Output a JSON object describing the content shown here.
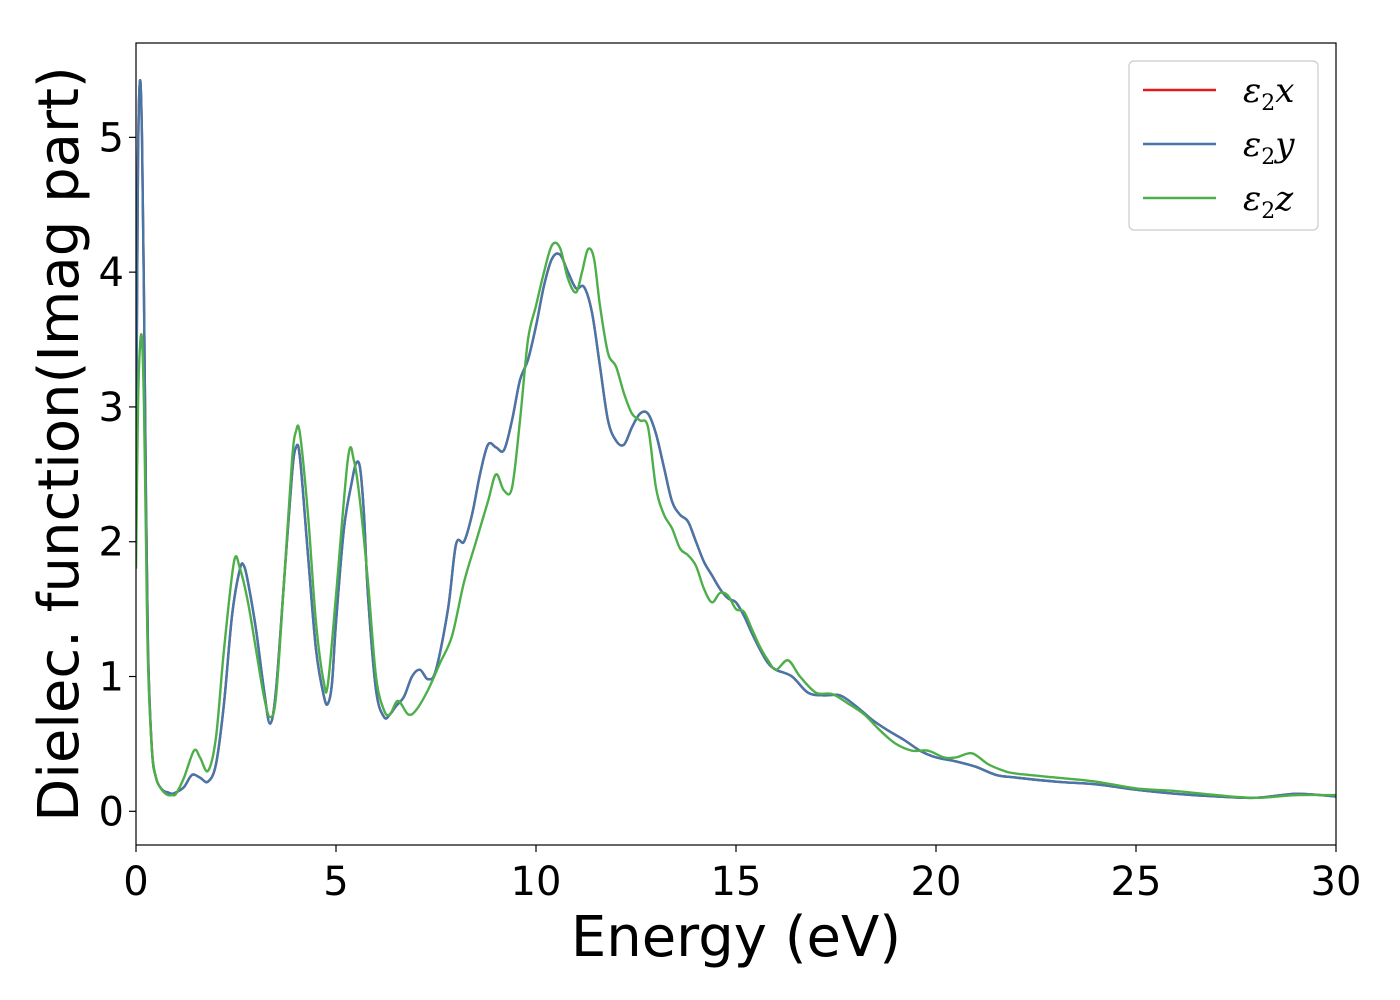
{
  "chart_data": {
    "type": "line",
    "xlabel": "Energy (eV)",
    "ylabel": "Dielec. function(Imag part)",
    "xlim": [
      0,
      30
    ],
    "ylim": [
      -0.25,
      5.7
    ],
    "xticks": [
      0,
      5,
      10,
      15,
      20,
      25,
      30
    ],
    "yticks": [
      0,
      1,
      2,
      3,
      4,
      5
    ],
    "grid": false,
    "legend_position": "top-right",
    "series": [
      {
        "name": "ε2x",
        "legend_main": "ε",
        "legend_sub": "2",
        "legend_tail": "x",
        "color": "#e41a1c",
        "x": [
          0,
          0.05,
          0.1,
          0.15,
          0.2,
          0.25,
          0.3,
          0.4,
          0.5,
          0.6,
          0.7,
          0.8,
          0.9,
          1.0,
          1.2,
          1.4,
          1.6,
          1.8,
          2.0,
          2.2,
          2.4,
          2.6,
          2.7,
          2.8,
          3.0,
          3.2,
          3.35,
          3.5,
          3.7,
          3.9,
          4.0,
          4.1,
          4.3,
          4.5,
          4.7,
          4.8,
          4.9,
          5.0,
          5.2,
          5.4,
          5.5,
          5.6,
          5.7,
          5.8,
          6.0,
          6.2,
          6.35,
          6.5,
          6.7,
          6.9,
          7.1,
          7.3,
          7.5,
          7.8,
          8.0,
          8.2,
          8.4,
          8.6,
          8.8,
          9.0,
          9.2,
          9.4,
          9.6,
          9.8,
          10.0,
          10.2,
          10.4,
          10.6,
          10.8,
          11.0,
          11.2,
          11.4,
          11.6,
          11.8,
          12.0,
          12.2,
          12.4,
          12.6,
          12.8,
          13.0,
          13.2,
          13.4,
          13.6,
          13.8,
          14.0,
          14.2,
          14.4,
          14.6,
          14.8,
          15.0,
          15.2,
          15.4,
          15.6,
          15.8,
          16.0,
          16.4,
          16.8,
          17.2,
          17.6,
          18.0,
          18.4,
          18.8,
          19.2,
          19.6,
          20.0,
          20.5,
          21.0,
          21.5,
          22.0,
          23.0,
          24.0,
          25.0,
          26.0,
          27.0,
          28.0,
          29.0,
          30.0
        ],
        "y": [
          2.4,
          4.8,
          5.42,
          5.0,
          3.8,
          2.3,
          1.2,
          0.45,
          0.25,
          0.18,
          0.15,
          0.14,
          0.13,
          0.14,
          0.18,
          0.27,
          0.25,
          0.22,
          0.35,
          0.8,
          1.45,
          1.8,
          1.82,
          1.7,
          1.35,
          0.9,
          0.65,
          0.9,
          1.7,
          2.5,
          2.7,
          2.62,
          1.9,
          1.2,
          0.85,
          0.8,
          0.95,
          1.4,
          2.1,
          2.45,
          2.58,
          2.55,
          2.2,
          1.6,
          0.9,
          0.7,
          0.72,
          0.78,
          0.85,
          1.0,
          1.05,
          0.98,
          1.05,
          1.5,
          1.98,
          2.0,
          2.2,
          2.5,
          2.72,
          2.7,
          2.68,
          2.9,
          3.2,
          3.35,
          3.6,
          3.9,
          4.1,
          4.13,
          4.0,
          3.88,
          3.89,
          3.7,
          3.3,
          2.9,
          2.75,
          2.72,
          2.85,
          2.95,
          2.95,
          2.8,
          2.55,
          2.3,
          2.2,
          2.15,
          2.0,
          1.85,
          1.75,
          1.65,
          1.58,
          1.55,
          1.45,
          1.32,
          1.2,
          1.1,
          1.05,
          1.0,
          0.88,
          0.86,
          0.86,
          0.78,
          0.68,
          0.6,
          0.53,
          0.45,
          0.4,
          0.37,
          0.33,
          0.27,
          0.25,
          0.22,
          0.2,
          0.16,
          0.13,
          0.11,
          0.1,
          0.13,
          0.11
        ]
      },
      {
        "name": "ε2y",
        "legend_main": "ε",
        "legend_sub": "2",
        "legend_tail": "y",
        "color": "#4477aa",
        "x": [
          0,
          0.05,
          0.1,
          0.15,
          0.2,
          0.25,
          0.3,
          0.4,
          0.5,
          0.6,
          0.7,
          0.8,
          0.9,
          1.0,
          1.2,
          1.4,
          1.6,
          1.8,
          2.0,
          2.2,
          2.4,
          2.6,
          2.7,
          2.8,
          3.0,
          3.2,
          3.35,
          3.5,
          3.7,
          3.9,
          4.0,
          4.1,
          4.3,
          4.5,
          4.7,
          4.8,
          4.9,
          5.0,
          5.2,
          5.4,
          5.5,
          5.6,
          5.7,
          5.8,
          6.0,
          6.2,
          6.35,
          6.5,
          6.7,
          6.9,
          7.1,
          7.3,
          7.5,
          7.8,
          8.0,
          8.2,
          8.4,
          8.6,
          8.8,
          9.0,
          9.2,
          9.4,
          9.6,
          9.8,
          10.0,
          10.2,
          10.4,
          10.6,
          10.8,
          11.0,
          11.2,
          11.4,
          11.6,
          11.8,
          12.0,
          12.2,
          12.4,
          12.6,
          12.8,
          13.0,
          13.2,
          13.4,
          13.6,
          13.8,
          14.0,
          14.2,
          14.4,
          14.6,
          14.8,
          15.0,
          15.2,
          15.4,
          15.6,
          15.8,
          16.0,
          16.4,
          16.8,
          17.2,
          17.6,
          18.0,
          18.4,
          18.8,
          19.2,
          19.6,
          20.0,
          20.5,
          21.0,
          21.5,
          22.0,
          23.0,
          24.0,
          25.0,
          26.0,
          27.0,
          28.0,
          29.0,
          30.0
        ],
        "y": [
          2.4,
          4.8,
          5.42,
          5.0,
          3.8,
          2.3,
          1.2,
          0.45,
          0.25,
          0.18,
          0.15,
          0.14,
          0.13,
          0.14,
          0.18,
          0.27,
          0.25,
          0.22,
          0.35,
          0.8,
          1.45,
          1.8,
          1.82,
          1.7,
          1.35,
          0.9,
          0.65,
          0.9,
          1.7,
          2.5,
          2.7,
          2.62,
          1.9,
          1.2,
          0.85,
          0.8,
          0.95,
          1.4,
          2.1,
          2.45,
          2.58,
          2.55,
          2.2,
          1.6,
          0.9,
          0.7,
          0.72,
          0.78,
          0.85,
          1.0,
          1.05,
          0.98,
          1.05,
          1.5,
          1.98,
          2.0,
          2.2,
          2.5,
          2.72,
          2.7,
          2.68,
          2.9,
          3.2,
          3.35,
          3.6,
          3.9,
          4.1,
          4.13,
          4.0,
          3.88,
          3.89,
          3.7,
          3.3,
          2.9,
          2.75,
          2.72,
          2.85,
          2.95,
          2.95,
          2.8,
          2.55,
          2.3,
          2.2,
          2.15,
          2.0,
          1.85,
          1.75,
          1.65,
          1.58,
          1.55,
          1.45,
          1.32,
          1.2,
          1.1,
          1.05,
          1.0,
          0.88,
          0.86,
          0.86,
          0.78,
          0.68,
          0.6,
          0.53,
          0.45,
          0.4,
          0.37,
          0.33,
          0.27,
          0.25,
          0.22,
          0.2,
          0.16,
          0.13,
          0.11,
          0.1,
          0.13,
          0.11
        ]
      },
      {
        "name": "ε2z",
        "legend_main": "ε",
        "legend_sub": "2",
        "legend_tail": "z",
        "color": "#4daf4a",
        "x": [
          0,
          0.05,
          0.1,
          0.15,
          0.2,
          0.25,
          0.3,
          0.4,
          0.5,
          0.6,
          0.7,
          0.8,
          0.9,
          1.0,
          1.2,
          1.45,
          1.6,
          1.8,
          2.0,
          2.2,
          2.45,
          2.6,
          2.8,
          3.0,
          3.2,
          3.35,
          3.5,
          3.7,
          3.9,
          4.0,
          4.1,
          4.3,
          4.5,
          4.7,
          4.8,
          5.0,
          5.3,
          5.45,
          5.6,
          5.8,
          6.0,
          6.2,
          6.35,
          6.55,
          6.8,
          7.0,
          7.3,
          7.6,
          7.9,
          8.2,
          8.5,
          8.8,
          9.0,
          9.2,
          9.4,
          9.6,
          9.8,
          10.0,
          10.2,
          10.4,
          10.6,
          10.8,
          11.0,
          11.15,
          11.3,
          11.45,
          11.6,
          11.8,
          12.0,
          12.2,
          12.4,
          12.6,
          12.8,
          13.0,
          13.2,
          13.4,
          13.6,
          13.8,
          14.0,
          14.2,
          14.4,
          14.6,
          14.8,
          15.0,
          15.2,
          15.4,
          15.6,
          15.8,
          16.0,
          16.3,
          16.6,
          17.0,
          17.4,
          17.8,
          18.2,
          18.6,
          19.0,
          19.4,
          19.8,
          20.2,
          20.5,
          20.9,
          21.3,
          21.7,
          22.0,
          23.0,
          24.0,
          25.0,
          26.0,
          27.0,
          28.0,
          29.0,
          30.0
        ],
        "y": [
          1.8,
          3.0,
          3.45,
          3.5,
          3.0,
          2.0,
          1.1,
          0.45,
          0.25,
          0.18,
          0.14,
          0.12,
          0.12,
          0.13,
          0.25,
          0.45,
          0.4,
          0.3,
          0.55,
          1.2,
          1.85,
          1.8,
          1.55,
          1.2,
          0.85,
          0.7,
          0.85,
          1.7,
          2.6,
          2.82,
          2.8,
          2.2,
          1.4,
          0.95,
          0.95,
          1.6,
          2.62,
          2.6,
          2.3,
          1.7,
          1.0,
          0.75,
          0.72,
          0.82,
          0.72,
          0.75,
          0.9,
          1.1,
          1.3,
          1.7,
          2.0,
          2.3,
          2.5,
          2.38,
          2.4,
          2.9,
          3.5,
          3.75,
          4.0,
          4.2,
          4.18,
          3.95,
          3.85,
          4.0,
          4.17,
          4.1,
          3.75,
          3.4,
          3.3,
          3.1,
          2.95,
          2.9,
          2.85,
          2.4,
          2.2,
          2.1,
          1.95,
          1.9,
          1.82,
          1.65,
          1.55,
          1.62,
          1.6,
          1.5,
          1.48,
          1.35,
          1.22,
          1.12,
          1.05,
          1.12,
          1.0,
          0.88,
          0.87,
          0.8,
          0.72,
          0.6,
          0.5,
          0.45,
          0.45,
          0.4,
          0.4,
          0.43,
          0.35,
          0.3,
          0.28,
          0.25,
          0.22,
          0.17,
          0.15,
          0.12,
          0.1,
          0.12,
          0.12
        ]
      }
    ]
  }
}
